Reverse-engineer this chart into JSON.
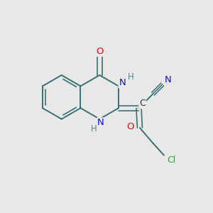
{
  "background_color": "#e8e8e8",
  "bond_color": "#3a7070",
  "atom_colors": {
    "N": "#1010cc",
    "O": "#cc1010",
    "Cl": "#22aa22",
    "H": "#5a8888",
    "C": "#333333"
  },
  "figsize": [
    3.0,
    3.0
  ],
  "dpi": 100,
  "xlim": [
    0,
    10
  ],
  "ylim": [
    0,
    10
  ]
}
